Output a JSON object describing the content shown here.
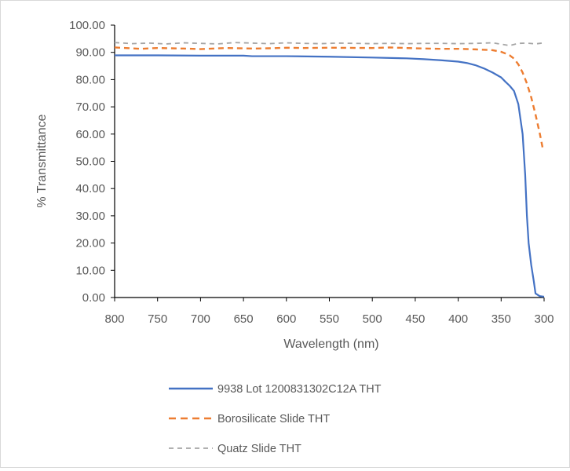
{
  "chart_data": {
    "type": "line",
    "title": "",
    "xlabel": "Wavelength (nm)",
    "ylabel": "% Transmittance",
    "xlim": [
      800,
      300
    ],
    "x_reversed": true,
    "ylim": [
      0,
      100
    ],
    "grid": false,
    "legend_position": "bottom",
    "x_ticks": [
      800,
      750,
      700,
      650,
      600,
      550,
      500,
      450,
      400,
      350,
      300
    ],
    "x_tick_labels": [
      "800",
      "750",
      "700",
      "650",
      "600",
      "550",
      "500",
      "450",
      "400",
      "350",
      "300"
    ],
    "y_ticks": [
      0,
      10,
      20,
      30,
      40,
      50,
      60,
      70,
      80,
      90,
      100
    ],
    "y_tick_labels": [
      "0.00",
      "10.00",
      "20.00",
      "30.00",
      "40.00",
      "50.00",
      "60.00",
      "70.00",
      "80.00",
      "90.00",
      "100.00"
    ],
    "series": [
      {
        "name": "9938 Lot 1200831302C12A THT",
        "color": "#4472c4",
        "dash": "solid",
        "points": [
          [
            800,
            88.9
          ],
          [
            750,
            88.9
          ],
          [
            700,
            88.8
          ],
          [
            650,
            88.8
          ],
          [
            640,
            88.6
          ],
          [
            600,
            88.6
          ],
          [
            550,
            88.4
          ],
          [
            500,
            88.1
          ],
          [
            460,
            87.8
          ],
          [
            440,
            87.5
          ],
          [
            420,
            87.1
          ],
          [
            400,
            86.6
          ],
          [
            390,
            86.1
          ],
          [
            380,
            85.3
          ],
          [
            370,
            84.1
          ],
          [
            360,
            82.6
          ],
          [
            350,
            80.8
          ],
          [
            345,
            79.2
          ],
          [
            340,
            77.7
          ],
          [
            335,
            75.8
          ],
          [
            330,
            71.0
          ],
          [
            325,
            60.0
          ],
          [
            322,
            45.0
          ],
          [
            320,
            30.0
          ],
          [
            318,
            20.0
          ],
          [
            315,
            12.0
          ],
          [
            312,
            6.0
          ],
          [
            310,
            1.5
          ],
          [
            305,
            0.5
          ],
          [
            300,
            0.3
          ]
        ]
      },
      {
        "name": "Borosilicate Slide THT",
        "color": "#ed7d31",
        "dash": "dashed",
        "points": [
          [
            800,
            91.8
          ],
          [
            770,
            91.3
          ],
          [
            750,
            91.6
          ],
          [
            720,
            91.4
          ],
          [
            700,
            91.2
          ],
          [
            670,
            91.6
          ],
          [
            640,
            91.4
          ],
          [
            620,
            91.5
          ],
          [
            600,
            91.7
          ],
          [
            580,
            91.6
          ],
          [
            550,
            91.7
          ],
          [
            500,
            91.6
          ],
          [
            480,
            91.8
          ],
          [
            450,
            91.5
          ],
          [
            420,
            91.3
          ],
          [
            400,
            91.3
          ],
          [
            380,
            91.1
          ],
          [
            360,
            90.8
          ],
          [
            350,
            90.2
          ],
          [
            345,
            89.6
          ],
          [
            340,
            88.9
          ],
          [
            335,
            87.7
          ],
          [
            330,
            85.6
          ],
          [
            325,
            82.6
          ],
          [
            320,
            78.6
          ],
          [
            315,
            73.5
          ],
          [
            310,
            67.2
          ],
          [
            305,
            60.2
          ],
          [
            301,
            53.8
          ]
        ]
      },
      {
        "name": "Quatz Slide THT",
        "color": "#a5a5a5",
        "dash": "dashed",
        "points": [
          [
            800,
            93.6
          ],
          [
            780,
            93.2
          ],
          [
            760,
            93.4
          ],
          [
            740,
            93.1
          ],
          [
            720,
            93.5
          ],
          [
            700,
            93.3
          ],
          [
            680,
            93.1
          ],
          [
            660,
            93.6
          ],
          [
            640,
            93.4
          ],
          [
            620,
            93.2
          ],
          [
            600,
            93.5
          ],
          [
            580,
            93.3
          ],
          [
            560,
            93.2
          ],
          [
            540,
            93.4
          ],
          [
            520,
            93.3
          ],
          [
            500,
            93.2
          ],
          [
            480,
            93.3
          ],
          [
            460,
            93.2
          ],
          [
            440,
            93.3
          ],
          [
            420,
            93.3
          ],
          [
            400,
            93.2
          ],
          [
            380,
            93.3
          ],
          [
            360,
            93.5
          ],
          [
            350,
            93.0
          ],
          [
            340,
            92.5
          ],
          [
            330,
            93.3
          ],
          [
            320,
            93.4
          ],
          [
            310,
            93.1
          ],
          [
            300,
            93.5
          ]
        ]
      }
    ]
  }
}
